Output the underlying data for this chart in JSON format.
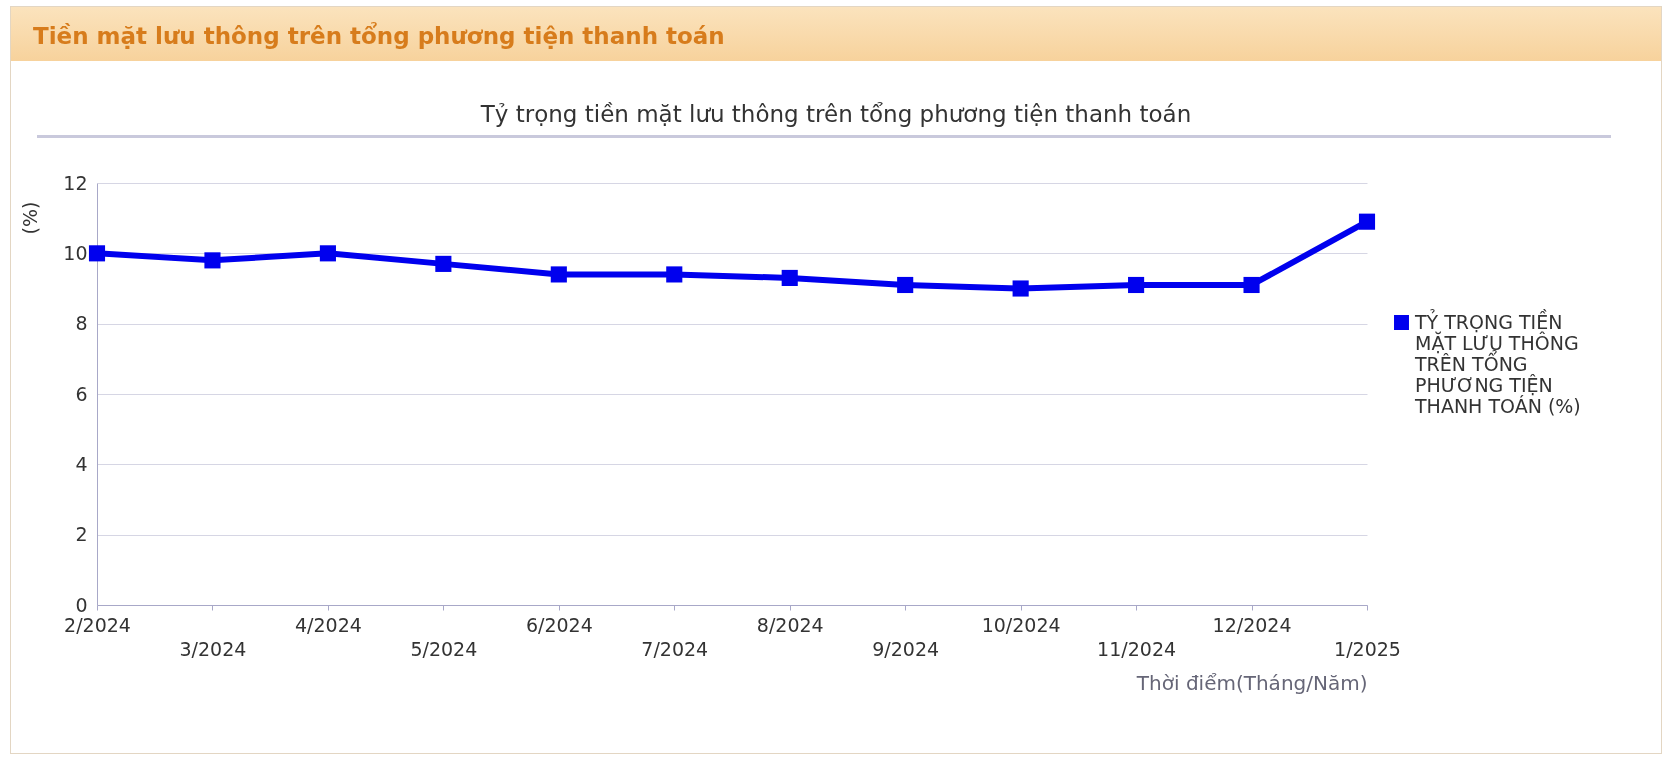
{
  "chart_data": {
    "type": "line",
    "title": "Tiền mặt lưu thông trên tổng phương tiện thanh toán",
    "subtitle": "Tỷ trọng tiền mặt lưu thông trên tổng phương tiện thanh toán",
    "xlabel": "Thời điểm(Tháng/Năm)",
    "ylabel": "(%)",
    "categories": [
      "2/2024",
      "3/2024",
      "4/2024",
      "5/2024",
      "6/2024",
      "7/2024",
      "8/2024",
      "9/2024",
      "10/2024",
      "11/2024",
      "12/2024",
      "1/2025"
    ],
    "series": [
      {
        "name": "TỶ TRỌNG TIỀN MẶT LƯU THÔNG TRÊN TỔNG PHƯƠNG TIỆN THANH TOÁN (%)",
        "color": "#0000ee",
        "values": [
          10.0,
          9.8,
          10.0,
          9.7,
          9.4,
          9.4,
          9.3,
          9.1,
          9.0,
          9.1,
          9.1,
          10.9
        ]
      }
    ],
    "ylim": [
      0,
      12
    ],
    "yticks": [
      0,
      2,
      4,
      6,
      8,
      10,
      12
    ],
    "grid": "y",
    "legend": "right",
    "marker": "square",
    "line_style": "solid"
  }
}
